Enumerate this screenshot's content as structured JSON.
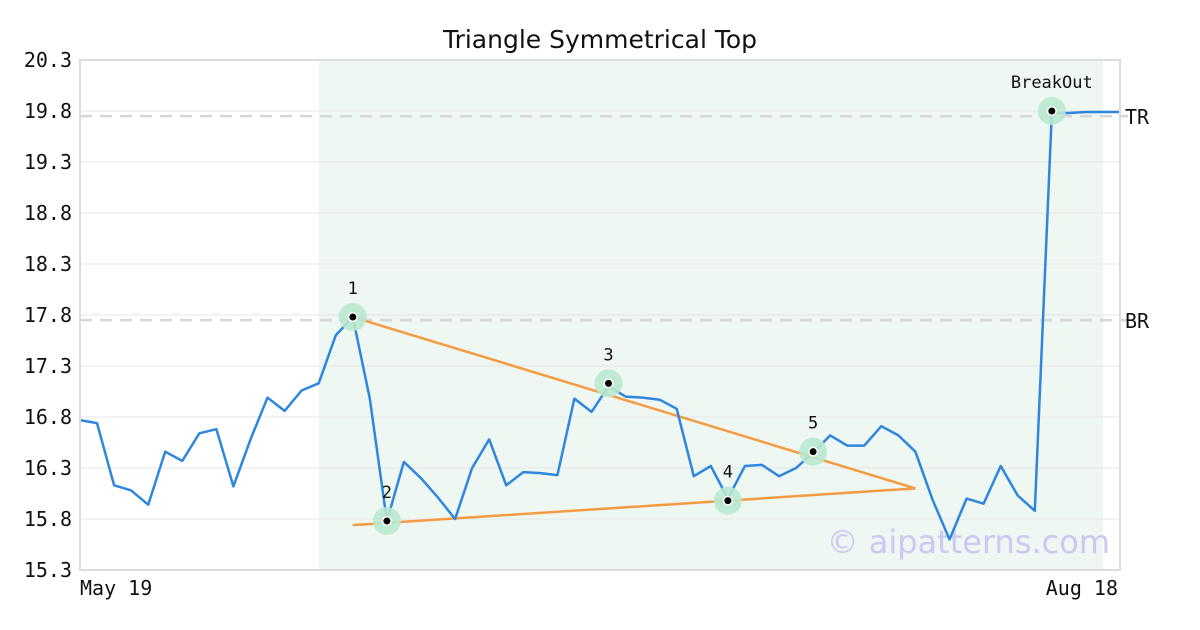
{
  "chart_data": {
    "type": "line",
    "title": "Triangle Symmetrical Top",
    "xlabel": "",
    "ylabel": "",
    "ylim": [
      15.3,
      20.3
    ],
    "yticks": [
      "20.3",
      "19.8",
      "19.3",
      "18.8",
      "18.3",
      "17.8",
      "17.3",
      "16.8",
      "16.3",
      "15.8",
      "15.3"
    ],
    "xtick_labels": [
      "May 19",
      "Aug 18"
    ],
    "grid": true,
    "line_color": "#2e86de",
    "trend_color": "#f59b42",
    "highlight_color": "#eef7f2",
    "marker_halo_color": "#b9e8cf",
    "series": [
      {
        "values": [
          16.77,
          16.74,
          16.13,
          16.08,
          15.94,
          16.46,
          16.37,
          16.64,
          16.68,
          16.12,
          16.58,
          16.99,
          16.86,
          17.06,
          17.13,
          17.6,
          17.78,
          16.98,
          15.78,
          16.36,
          16.2,
          16.01,
          15.8,
          16.3,
          16.58,
          16.13,
          16.26,
          16.25,
          16.23,
          16.98,
          16.85,
          17.1,
          17.0,
          16.99,
          16.97,
          16.88,
          16.22,
          16.32,
          16.0,
          16.32,
          16.33,
          16.22,
          16.3,
          16.45,
          16.62,
          16.52,
          16.52,
          16.71,
          16.62,
          16.46,
          15.99,
          15.6,
          16.0,
          15.95,
          16.32,
          16.03,
          15.88,
          19.78,
          19.78,
          19.79,
          19.79,
          19.79
        ]
      }
    ],
    "highlight_range": {
      "start_index": 14,
      "end_index": 60
    },
    "trendlines": [
      {
        "from": {
          "index": 16,
          "value": 17.78
        },
        "to": {
          "index": 49,
          "value": 16.1
        }
      },
      {
        "from": {
          "index": 16,
          "value": 15.74
        },
        "to": {
          "index": 49,
          "value": 16.1
        }
      }
    ],
    "pattern_points": [
      {
        "label": "1",
        "index": 16,
        "value": 17.78
      },
      {
        "label": "2",
        "index": 18,
        "value": 15.78
      },
      {
        "label": "3",
        "index": 31,
        "value": 17.13
      },
      {
        "label": "4",
        "index": 38,
        "value": 15.98
      },
      {
        "label": "5",
        "index": 43,
        "value": 16.46
      },
      {
        "label": "BreakOut",
        "index": 57,
        "value": 19.8
      }
    ],
    "reference_lines": [
      {
        "label": "TR",
        "value": 19.75
      },
      {
        "label": "BR",
        "value": 17.75
      }
    ]
  },
  "watermark": "© aipatterns.com"
}
